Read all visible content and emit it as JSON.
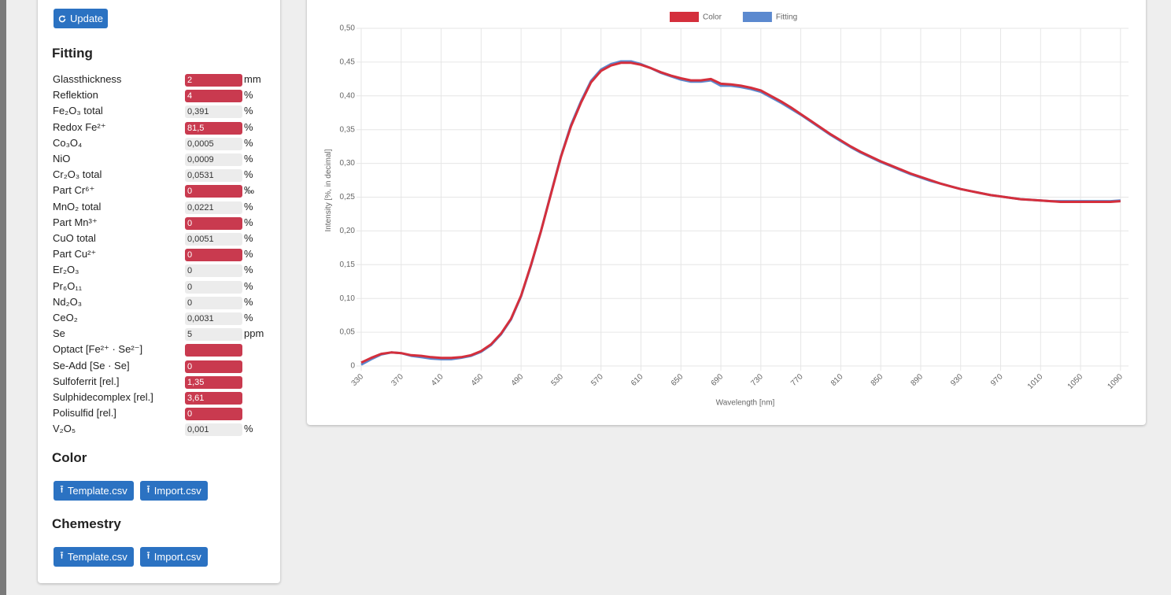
{
  "sidebar": {
    "update_button": "Update",
    "fitting_title": "Fitting",
    "parameters": [
      {
        "label": "Glassthickness",
        "value": "2",
        "unit": "mm",
        "highlighted": true
      },
      {
        "label": "Reflektion",
        "value": "4",
        "unit": "%",
        "highlighted": true
      },
      {
        "label": "Fe₂O₃ total",
        "value": "0,391",
        "unit": "%",
        "highlighted": false
      },
      {
        "label": "Redox Fe²⁺",
        "value": "81,5",
        "unit": "%",
        "highlighted": true
      },
      {
        "label": "Co₃O₄",
        "value": "0,0005",
        "unit": "%",
        "highlighted": false
      },
      {
        "label": "NiO",
        "value": "0,0009",
        "unit": "%",
        "highlighted": false
      },
      {
        "label": "Cr₂O₃ total",
        "value": "0,0531",
        "unit": "%",
        "highlighted": false
      },
      {
        "label": "Part Cr⁶⁺",
        "value": "0",
        "unit": "‰",
        "highlighted": true
      },
      {
        "label": "MnO₂ total",
        "value": "0,0221",
        "unit": "%",
        "highlighted": false
      },
      {
        "label": "Part Mn³⁺",
        "value": "0",
        "unit": "%",
        "highlighted": true
      },
      {
        "label": "CuO total",
        "value": "0,0051",
        "unit": "%",
        "highlighted": false
      },
      {
        "label": "Part Cu²⁺",
        "value": "0",
        "unit": "%",
        "highlighted": true
      },
      {
        "label": "Er₂O₃",
        "value": "0",
        "unit": "%",
        "highlighted": false
      },
      {
        "label": "Pr₆O₁₁",
        "value": "0",
        "unit": "%",
        "highlighted": false
      },
      {
        "label": "Nd₂O₃",
        "value": "0",
        "unit": "%",
        "highlighted": false
      },
      {
        "label": "CeO₂",
        "value": "0,0031",
        "unit": "%",
        "highlighted": false
      },
      {
        "label": "Se",
        "value": "5",
        "unit": "ppm",
        "highlighted": false
      },
      {
        "label": "Optact [Fe²⁺ · Se²⁻]",
        "highlighted": true
      },
      {
        "label": "Se-Add [Se · Se]",
        "value": "0",
        "highlighted": true
      },
      {
        "label": "Sulfoferrit [rel.]",
        "value": "1,35",
        "highlighted": true
      },
      {
        "label": "Sulphidecomplex [rel.]",
        "value": "3,61",
        "highlighted": true
      },
      {
        "label": "Polisulfid [rel.]",
        "value": "0",
        "highlighted": true
      },
      {
        "label": "V₂O₅",
        "value": "0,001",
        "unit": "%",
        "highlighted": false
      }
    ],
    "color_title": "Color",
    "color_buttons": [
      "Template.csv",
      "Import.csv"
    ],
    "chemestry_title": "Chemestry",
    "chemestry_buttons": [
      "Template.csv",
      "Import.csv"
    ]
  },
  "chart_data": {
    "type": "line",
    "x_label": "Wavelength [nm]",
    "y_label": "Intensity [%, in decimal]",
    "x": [
      330,
      340,
      350,
      360,
      370,
      380,
      390,
      400,
      410,
      420,
      430,
      440,
      450,
      460,
      470,
      480,
      490,
      500,
      510,
      520,
      530,
      540,
      550,
      560,
      570,
      580,
      590,
      600,
      610,
      620,
      630,
      640,
      650,
      660,
      670,
      680,
      690,
      700,
      710,
      720,
      730,
      740,
      750,
      760,
      770,
      780,
      790,
      800,
      810,
      820,
      830,
      840,
      850,
      860,
      870,
      880,
      890,
      900,
      910,
      920,
      930,
      940,
      950,
      960,
      970,
      980,
      990,
      1000,
      1010,
      1020,
      1030,
      1040,
      1050,
      1060,
      1070,
      1080,
      1090
    ],
    "series": [
      {
        "name": "Color",
        "color": "#d42f3c",
        "values": [
          0.005,
          0.012,
          0.018,
          0.02,
          0.019,
          0.016,
          0.015,
          0.013,
          0.012,
          0.012,
          0.013,
          0.016,
          0.022,
          0.032,
          0.048,
          0.07,
          0.104,
          0.15,
          0.2,
          0.255,
          0.31,
          0.355,
          0.39,
          0.42,
          0.437,
          0.445,
          0.449,
          0.449,
          0.446,
          0.441,
          0.435,
          0.43,
          0.426,
          0.423,
          0.423,
          0.425,
          0.418,
          0.417,
          0.415,
          0.412,
          0.408,
          0.4,
          0.392,
          0.383,
          0.373,
          0.363,
          0.353,
          0.343,
          0.334,
          0.325,
          0.317,
          0.31,
          0.303,
          0.297,
          0.291,
          0.285,
          0.28,
          0.275,
          0.27,
          0.266,
          0.262,
          0.259,
          0.256,
          0.253,
          0.251,
          0.249,
          0.247,
          0.246,
          0.245,
          0.244,
          0.243,
          0.243,
          0.243,
          0.243,
          0.243,
          0.243,
          0.244
        ]
      },
      {
        "name": "Fitting",
        "color": "#5b89cf",
        "values": [
          0.002,
          0.01,
          0.017,
          0.02,
          0.019,
          0.015,
          0.013,
          0.011,
          0.01,
          0.01,
          0.012,
          0.015,
          0.021,
          0.031,
          0.047,
          0.069,
          0.103,
          0.149,
          0.2,
          0.256,
          0.311,
          0.357,
          0.392,
          0.422,
          0.439,
          0.447,
          0.451,
          0.451,
          0.447,
          0.441,
          0.434,
          0.429,
          0.424,
          0.421,
          0.421,
          0.423,
          0.415,
          0.415,
          0.413,
          0.41,
          0.406,
          0.398,
          0.39,
          0.381,
          0.372,
          0.362,
          0.352,
          0.342,
          0.333,
          0.324,
          0.316,
          0.309,
          0.302,
          0.296,
          0.29,
          0.284,
          0.279,
          0.274,
          0.27,
          0.266,
          0.262,
          0.259,
          0.256,
          0.253,
          0.251,
          0.249,
          0.247,
          0.246,
          0.245,
          0.244,
          0.244,
          0.244,
          0.244,
          0.244,
          0.244,
          0.244,
          0.245
        ]
      }
    ],
    "xlim": [
      330,
      1098
    ],
    "xticks": [
      330,
      370,
      410,
      450,
      490,
      530,
      570,
      610,
      650,
      690,
      730,
      770,
      810,
      850,
      890,
      930,
      970,
      1010,
      1050,
      1090
    ],
    "ylim": [
      0,
      0.5
    ],
    "yticks": [
      0,
      {
        "value": 0.05,
        "label": "0,05"
      },
      {
        "value": 0.1,
        "label": "0,10"
      },
      {
        "value": 0.15,
        "label": "0,15"
      },
      {
        "value": 0.2,
        "label": "0,20"
      },
      {
        "value": 0.25,
        "label": "0,25"
      },
      {
        "value": 0.3,
        "label": "0,30"
      },
      {
        "value": 0.35,
        "label": "0,35"
      },
      {
        "value": 0.4,
        "label": "0,40"
      },
      {
        "value": 0.45,
        "label": "0,45"
      },
      {
        "value": 0.5,
        "label": "0,50"
      }
    ],
    "grid": true,
    "legend": "top"
  }
}
